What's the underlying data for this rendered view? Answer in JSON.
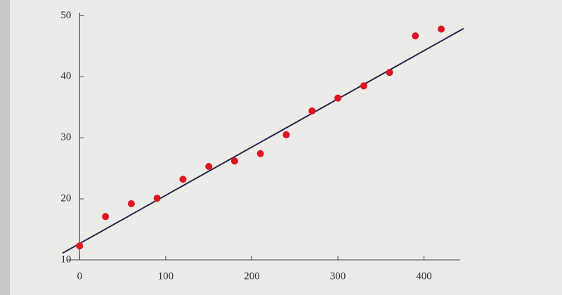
{
  "chart_data": {
    "type": "scatter",
    "x": [
      0,
      30,
      60,
      90,
      120,
      150,
      180,
      210,
      240,
      270,
      300,
      330,
      360,
      390,
      420
    ],
    "values": [
      12.3,
      17.1,
      19.2,
      20.1,
      23.2,
      25.3,
      26.2,
      27.4,
      30.5,
      34.4,
      36.5,
      38.5,
      40.7,
      46.7,
      47.8
    ],
    "color": "#e0141e",
    "fit": {
      "x": [
        -20,
        446
      ],
      "values": [
        11.1,
        47.9
      ],
      "color": "#2a2550"
    },
    "xlim": [
      -15,
      442
    ],
    "xticks": [
      0,
      100,
      200,
      300,
      400
    ],
    "ylim": [
      10,
      50.5
    ],
    "yticks": [
      10,
      20,
      30,
      40,
      50
    ],
    "grid": false
  }
}
